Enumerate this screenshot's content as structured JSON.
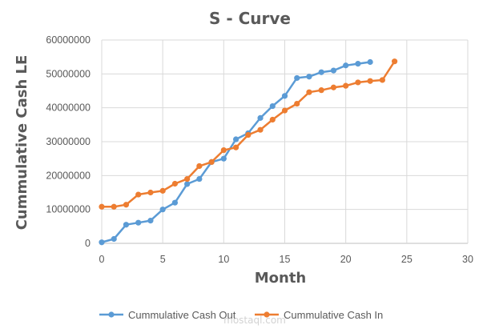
{
  "chart_data": {
    "type": "line",
    "title": "S - Curve",
    "xlabel": "Month",
    "ylabel": "Cummulative Cash LE",
    "xlim": [
      0,
      30
    ],
    "ylim": [
      0,
      60000000
    ],
    "x_ticks": [
      "0",
      "5",
      "10",
      "15",
      "20",
      "25",
      "30"
    ],
    "y_ticks": [
      "0",
      "10000000",
      "20000000",
      "30000000",
      "40000000",
      "50000000",
      "60000000"
    ],
    "grid": true,
    "legend_position": "bottom",
    "series": [
      {
        "name": "Cummulative Cash Out",
        "color": "#5b9bd5",
        "x": [
          0,
          1,
          2,
          3,
          4,
          5,
          6,
          7,
          8,
          9,
          10,
          11,
          12,
          13,
          14,
          15,
          16,
          17,
          18,
          19,
          20,
          21,
          22
        ],
        "values": [
          300000,
          1300000,
          5500000,
          6100000,
          6700000,
          10000000,
          12000000,
          17500000,
          19000000,
          24000000,
          25000000,
          30700000,
          32500000,
          37000000,
          40500000,
          43500000,
          48800000,
          49200000,
          50500000,
          51000000,
          52500000,
          53000000,
          53500000
        ]
      },
      {
        "name": "Cummulative Cash In",
        "color": "#ed7d31",
        "x": [
          0,
          1,
          2,
          3,
          4,
          5,
          6,
          7,
          8,
          9,
          10,
          11,
          12,
          13,
          14,
          15,
          16,
          17,
          18,
          19,
          20,
          21,
          22,
          23,
          24
        ],
        "values": [
          10800000,
          10800000,
          11400000,
          14400000,
          15000000,
          15500000,
          17600000,
          19000000,
          22800000,
          24000000,
          27500000,
          28300000,
          32000000,
          33500000,
          36500000,
          39200000,
          41200000,
          44600000,
          45200000,
          46000000,
          46500000,
          47500000,
          47900000,
          48200000,
          53700000
        ]
      }
    ]
  },
  "watermark": "mostaql.com"
}
